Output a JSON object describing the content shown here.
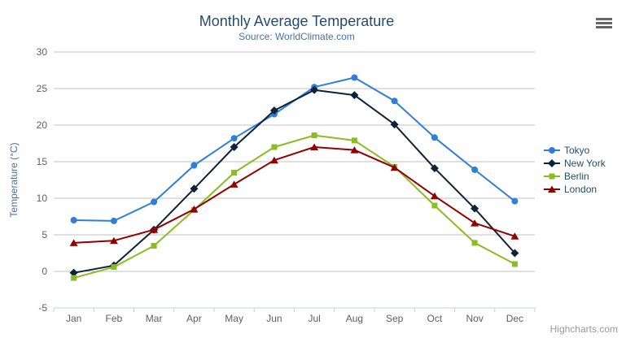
{
  "chart_data": {
    "type": "line",
    "title": "Monthly Average Temperature",
    "subtitle": "Source: WorldClimate.com",
    "categories": [
      "Jan",
      "Feb",
      "Mar",
      "Apr",
      "May",
      "Jun",
      "Jul",
      "Aug",
      "Sep",
      "Oct",
      "Nov",
      "Dec"
    ],
    "series": [
      {
        "name": "Tokyo",
        "color": "#2f7ed8",
        "marker": "circle",
        "values": [
          7.0,
          6.9,
          9.5,
          14.5,
          18.2,
          21.5,
          25.2,
          26.5,
          23.3,
          18.3,
          13.9,
          9.6
        ]
      },
      {
        "name": "New York",
        "color": "#0d233a",
        "marker": "diamond",
        "values": [
          -0.2,
          0.8,
          5.7,
          11.3,
          17.0,
          22.0,
          24.8,
          24.1,
          20.1,
          14.1,
          8.6,
          2.5
        ]
      },
      {
        "name": "Berlin",
        "color": "#8bbc21",
        "marker": "square",
        "values": [
          -0.9,
          0.6,
          3.5,
          8.4,
          13.5,
          17.0,
          18.6,
          17.9,
          14.3,
          9.0,
          3.9,
          1.0
        ]
      },
      {
        "name": "London",
        "color": "#910000",
        "marker": "triangle",
        "values": [
          3.9,
          4.2,
          5.7,
          8.5,
          11.9,
          15.2,
          17.0,
          16.6,
          14.2,
          10.3,
          6.6,
          4.8
        ]
      }
    ],
    "xlabel": "",
    "ylabel": "Temperature (°C)",
    "ylim": [
      -5,
      30
    ],
    "ytick_step": 5,
    "grid": true,
    "legend_position": "right",
    "grid_color": "#c0c0c0",
    "axis_color": "#c0d0e0",
    "tick_label_color": "#606060",
    "title_color": "#274b6d",
    "subtitle_color": "#4572a7"
  },
  "toolbar": {
    "context_menu_icon": "hamburger-icon"
  },
  "credit": {
    "label": "Highcharts.com"
  }
}
